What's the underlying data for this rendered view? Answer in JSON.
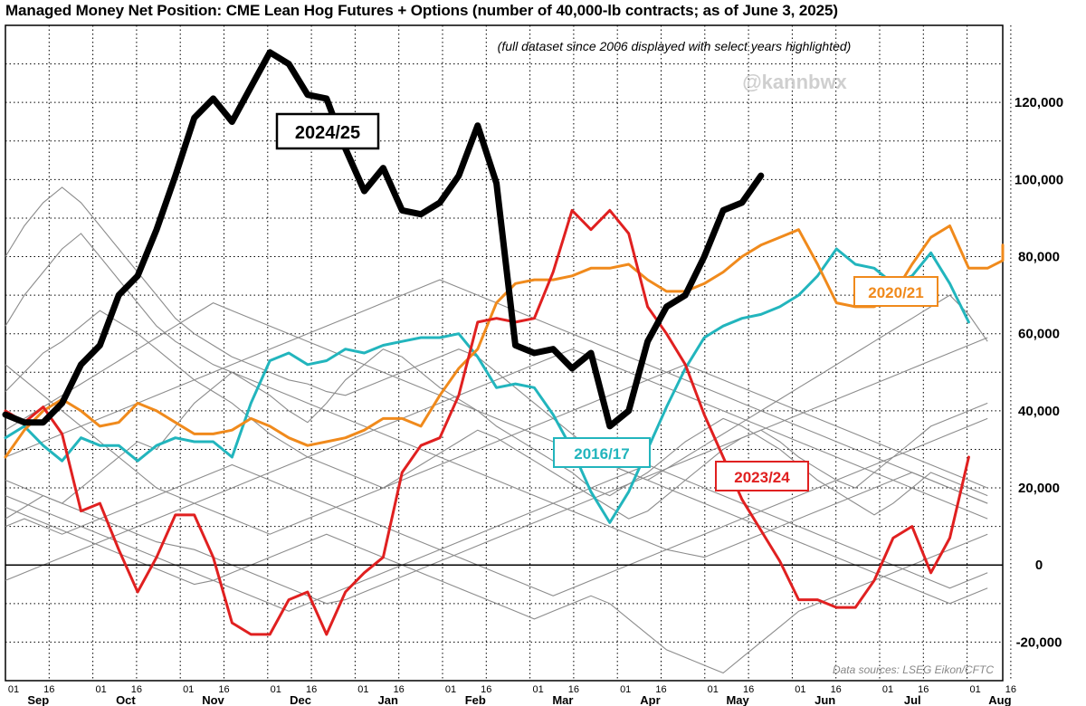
{
  "chart_data": {
    "type": "line",
    "title": "Managed Money Net Position: CME Lean Hog Futures + Options (number of 40,000-lb contracts; as of June 3, 2025)",
    "subtitle": "(full dataset since 2006 displayed with select years highlighted)",
    "watermark": "@kannbwx",
    "source": "Data sources: LSEG Eikon/CFTC",
    "xlabel": "",
    "ylabel": "",
    "x_unit": "weeks from Sep 01",
    "ylim": [
      -30000,
      140000
    ],
    "yticks": [
      -20000,
      0,
      20000,
      40000,
      60000,
      80000,
      100000,
      120000
    ],
    "ytick_labels": [
      "-20,000",
      "0",
      "20,000",
      "40,000",
      "60,000",
      "80,000",
      "100,000",
      "120,000"
    ],
    "months": [
      "Sep",
      "Oct",
      "Nov",
      "Dec",
      "Jan",
      "Feb",
      "Mar",
      "Apr",
      "May",
      "Jun",
      "Jul",
      "Aug"
    ],
    "day_labels": [
      "01",
      "16"
    ],
    "grid": true,
    "colors": {
      "2024/25": "#000000",
      "2023/24": "#e02020",
      "2020/21": "#f08a1c",
      "2016/17": "#22b5bd",
      "other": "#8c8c8c"
    },
    "series": [
      {
        "name": "2024/25",
        "highlight": true,
        "values": [
          39000,
          37000,
          37000,
          42000,
          52000,
          57000,
          70000,
          75000,
          87000,
          101000,
          116000,
          121000,
          115000,
          124000,
          133000,
          130000,
          122000,
          121000,
          108000,
          97000,
          103000,
          92000,
          91000,
          94000,
          101000,
          114000,
          99000,
          57000,
          55000,
          56000,
          51000,
          55000,
          36000,
          40000,
          58000,
          67000,
          70000,
          80000,
          92000,
          94000,
          101000
        ]
      },
      {
        "name": "2023/24",
        "highlight": true,
        "values": [
          40000,
          37000,
          41000,
          34000,
          14000,
          16000,
          4000,
          -7000,
          2000,
          13000,
          13000,
          2000,
          -15000,
          -18000,
          -18000,
          -9000,
          -7000,
          -18000,
          -7000,
          -2000,
          2000,
          24000,
          31000,
          33000,
          44000,
          63000,
          64000,
          63000,
          64000,
          76000,
          92000,
          87000,
          92000,
          86000,
          67000,
          60000,
          52000,
          39000,
          28000,
          17000,
          9000,
          1000,
          -9000,
          -9000,
          -11000,
          -11000,
          -4000,
          7000,
          10000,
          -2000,
          7000,
          28000
        ]
      },
      {
        "name": "2020/21",
        "highlight": true,
        "values": [
          28000,
          35000,
          40000,
          43000,
          40000,
          36000,
          37000,
          42000,
          40000,
          37000,
          34000,
          34000,
          35000,
          38000,
          36000,
          33000,
          31000,
          32000,
          33000,
          35000,
          38000,
          38000,
          36000,
          44000,
          51000,
          56000,
          68000,
          73000,
          74000,
          74000,
          75000,
          77000,
          77000,
          78000,
          74000,
          71000,
          71000,
          73000,
          76000,
          80000,
          83000,
          85000,
          87000,
          78000,
          68000,
          67000,
          67000,
          70000,
          78000,
          85000,
          88000,
          77000,
          77000,
          79000,
          83000
        ]
      },
      {
        "name": "2016/17",
        "highlight": true,
        "values": [
          33000,
          36000,
          31000,
          27000,
          33000,
          31000,
          31000,
          27000,
          31000,
          33000,
          32000,
          32000,
          28000,
          42000,
          53000,
          55000,
          52000,
          53000,
          56000,
          55000,
          57000,
          58000,
          59000,
          59000,
          60000,
          54000,
          46000,
          47000,
          46000,
          39000,
          30000,
          19000,
          11000,
          19000,
          30000,
          41000,
          51000,
          59000,
          62000,
          64000,
          65000,
          67000,
          70000,
          75000,
          82000,
          78000,
          77000,
          73000,
          75000,
          81000,
          73000,
          63000
        ]
      },
      {
        "name": "",
        "values": [
          12000,
          15000,
          18000,
          16000,
          20000,
          24000,
          28000,
          32000,
          30000,
          36000,
          42000,
          46000,
          50000,
          47000,
          44000,
          40000,
          37000,
          42000,
          48000,
          52000,
          56000,
          54000,
          50000,
          46000,
          43000,
          40000,
          36000,
          33000,
          30000,
          27000,
          24000,
          20000,
          18000,
          21000,
          24000,
          28000,
          32000,
          35000,
          38000,
          36000,
          33000,
          30000,
          26000,
          22000,
          19000,
          16000,
          13000,
          16000,
          20000,
          24000,
          22000,
          20000,
          18000
        ]
      },
      {
        "name": "",
        "values": [
          45000,
          50000,
          55000,
          58000,
          62000,
          66000,
          63000,
          60000,
          56000,
          52000,
          48000,
          45000,
          42000,
          38000,
          34000,
          31000,
          28000,
          26000,
          24000,
          22000,
          20000,
          23000,
          26000,
          29000,
          32000,
          35000,
          33000,
          30000,
          27000,
          24000,
          21000,
          18000,
          15000,
          12000,
          14000,
          18000,
          22000,
          26000,
          30000,
          33000,
          35000,
          32000,
          28000,
          25000,
          22000,
          20000,
          24000,
          28000,
          32000,
          36000,
          38000,
          40000,
          42000
        ]
      },
      {
        "name": "",
        "values": [
          80000,
          88000,
          94000,
          98000,
          94000,
          88000,
          82000,
          76000,
          70000,
          64000,
          60000,
          57000,
          54000,
          52000,
          50000,
          48000,
          47000,
          45000,
          44000,
          46000,
          48000,
          50000,
          52000,
          54000,
          56000,
          54000,
          50000,
          46000,
          42000,
          38000,
          34000,
          30000,
          26000,
          24000,
          22000,
          25000,
          28000,
          31000,
          34000,
          37000,
          40000,
          43000,
          46000,
          49000,
          52000,
          55000,
          58000,
          61000,
          64000,
          67000,
          70000,
          65000,
          58000
        ]
      },
      {
        "name": "",
        "values": [
          62000,
          70000,
          76000,
          82000,
          86000,
          80000,
          74000,
          68000,
          62000,
          58000,
          55000,
          52000,
          50000,
          48000,
          46000,
          44000,
          42000,
          40000,
          38000,
          36000,
          34000,
          32000,
          30000,
          28000,
          26000,
          24000,
          22000,
          20000,
          18000,
          16000,
          14000,
          12000,
          10000,
          8000,
          6000,
          4000,
          3000,
          2000,
          4000,
          6000,
          8000,
          10000,
          12000,
          14000,
          16000,
          18000,
          20000,
          22000,
          24000,
          22000,
          20000,
          18000,
          16000
        ]
      },
      {
        "name": "",
        "values": [
          22000,
          20000,
          18000,
          16000,
          14000,
          12000,
          10000,
          8000,
          6000,
          5000,
          4000,
          2000,
          0,
          -2000,
          -4000,
          -6000,
          -8000,
          -10000,
          -9000,
          -7000,
          -5000,
          -3000,
          -1000,
          1000,
          3000,
          5000,
          7000,
          9000,
          11000,
          13000,
          15000,
          17000,
          19000,
          21000,
          23000,
          25000,
          27000,
          29000,
          31000,
          33000,
          35000,
          37000,
          39000,
          41000,
          43000,
          45000,
          47000,
          49000,
          51000,
          53000,
          55000,
          57000,
          59000
        ]
      },
      {
        "name": "",
        "values": [
          15000,
          13000,
          11000,
          9000,
          7000,
          5000,
          3000,
          1000,
          -1000,
          -3000,
          -5000,
          -4000,
          -2000,
          0,
          2000,
          4000,
          6000,
          8000,
          6000,
          4000,
          2000,
          0,
          -2000,
          -4000,
          -6000,
          -8000,
          -10000,
          -12000,
          -14000,
          -12000,
          -10000,
          -8000,
          -10000,
          -14000,
          -18000,
          -22000,
          -24000,
          -26000,
          -28000,
          -24000,
          -20000,
          -16000,
          -12000,
          -10000,
          -8000,
          -6000,
          -4000,
          -2000,
          0,
          2000,
          4000,
          6000,
          8000
        ]
      },
      {
        "name": "",
        "values": [
          -4000,
          -2000,
          0,
          2000,
          4000,
          6000,
          8000,
          10000,
          12000,
          14000,
          16000,
          18000,
          20000,
          22000,
          24000,
          26000,
          28000,
          30000,
          32000,
          34000,
          36000,
          38000,
          40000,
          42000,
          44000,
          46000,
          48000,
          50000,
          52000,
          54000,
          56000,
          54000,
          52000,
          50000,
          48000,
          46000,
          44000,
          42000,
          40000,
          38000,
          36000,
          34000,
          32000,
          30000,
          28000,
          26000,
          24000,
          22000,
          20000,
          18000,
          16000,
          14000,
          12000
        ]
      },
      {
        "name": "",
        "values": [
          28000,
          30000,
          32000,
          34000,
          36000,
          38000,
          40000,
          42000,
          44000,
          46000,
          48000,
          50000,
          52000,
          54000,
          56000,
          58000,
          60000,
          62000,
          64000,
          66000,
          68000,
          70000,
          72000,
          74000,
          72000,
          70000,
          68000,
          66000,
          64000,
          62000,
          60000,
          58000,
          56000,
          54000,
          52000,
          50000,
          48000,
          46000,
          44000,
          42000,
          40000,
          38000,
          36000,
          34000,
          32000,
          30000,
          28000,
          26000,
          24000,
          22000,
          20000,
          18000,
          16000
        ]
      },
      {
        "name": "",
        "values": [
          10000,
          12000,
          10000,
          8000,
          10000,
          12000,
          14000,
          16000,
          18000,
          20000,
          22000,
          24000,
          26000,
          24000,
          22000,
          20000,
          18000,
          16000,
          14000,
          12000,
          10000,
          8000,
          6000,
          4000,
          2000,
          0,
          -2000,
          -4000,
          -6000,
          -8000,
          -6000,
          -4000,
          -2000,
          0,
          2000,
          4000,
          6000,
          8000,
          10000,
          12000,
          14000,
          16000,
          18000,
          20000,
          22000,
          24000,
          26000,
          28000,
          30000,
          32000,
          34000,
          36000,
          38000
        ]
      },
      {
        "name": "",
        "values": [
          52000,
          48000,
          44000,
          40000,
          36000,
          32000,
          28000,
          24000,
          20000,
          18000,
          16000,
          14000,
          12000,
          10000,
          8000,
          10000,
          12000,
          14000,
          16000,
          18000,
          20000,
          22000,
          24000,
          26000,
          28000,
          30000,
          32000,
          34000,
          36000,
          38000,
          40000,
          42000,
          44000,
          46000,
          48000,
          50000,
          52000,
          50000,
          48000,
          46000,
          44000,
          42000,
          40000,
          38000,
          36000,
          34000,
          32000,
          30000,
          28000,
          26000,
          24000,
          22000,
          20000
        ]
      },
      {
        "name": "",
        "values": [
          18000,
          16000,
          14000,
          12000,
          10000,
          8000,
          6000,
          4000,
          2000,
          0,
          -2000,
          -4000,
          -6000,
          -8000,
          -10000,
          -12000,
          -10000,
          -8000,
          -6000,
          -4000,
          -2000,
          0,
          2000,
          4000,
          6000,
          8000,
          10000,
          12000,
          14000,
          16000,
          18000,
          20000,
          22000,
          24000,
          26000,
          24000,
          22000,
          20000,
          18000,
          16000,
          14000,
          12000,
          10000,
          8000,
          6000,
          4000,
          2000,
          0,
          -2000,
          -4000,
          -6000,
          -4000,
          -2000
        ]
      },
      {
        "name": "",
        "values": [
          35000,
          38000,
          41000,
          44000,
          47000,
          50000,
          53000,
          56000,
          59000,
          62000,
          65000,
          68000,
          66000,
          64000,
          62000,
          60000,
          58000,
          56000,
          54000,
          52000,
          50000,
          48000,
          46000,
          44000,
          42000,
          40000,
          38000,
          36000,
          34000,
          32000,
          30000,
          28000,
          26000,
          24000,
          22000,
          20000,
          18000,
          16000,
          14000,
          12000,
          10000,
          8000,
          6000,
          4000,
          2000,
          0,
          -2000,
          -4000,
          -6000,
          -8000,
          -10000,
          -8000,
          -6000
        ]
      }
    ]
  },
  "labels": {
    "2024/25": "2024/25",
    "2023/24": "2023/24",
    "2020/21": "2020/21",
    "2016/17": "2016/17"
  }
}
